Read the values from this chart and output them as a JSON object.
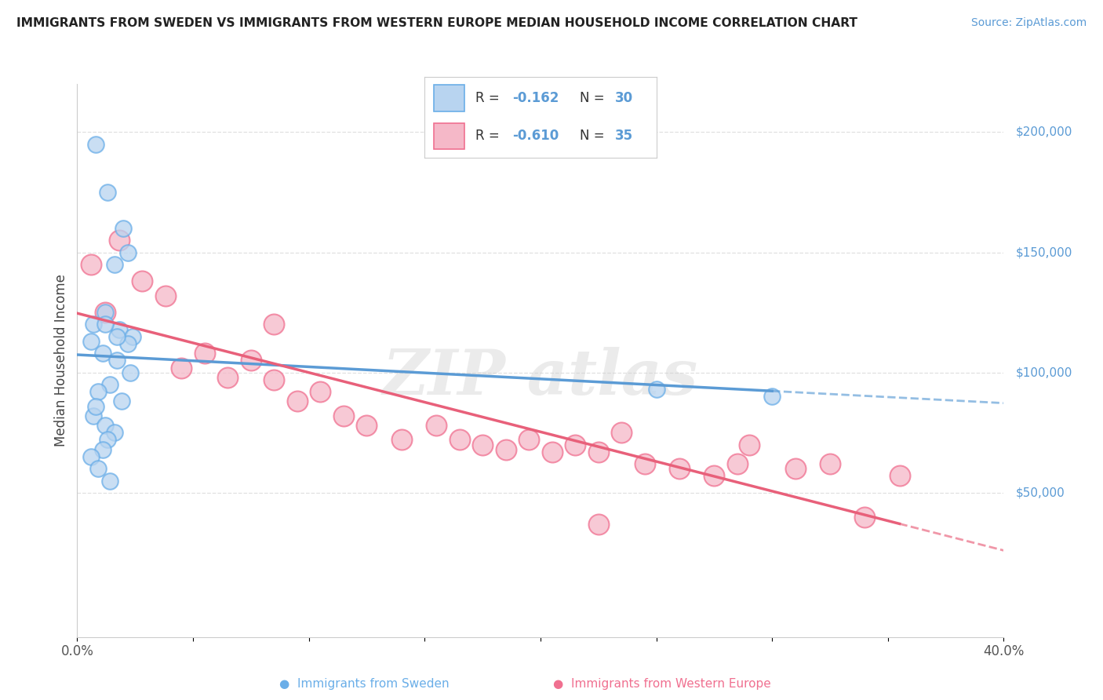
{
  "title": "IMMIGRANTS FROM SWEDEN VS IMMIGRANTS FROM WESTERN EUROPE MEDIAN HOUSEHOLD INCOME CORRELATION CHART",
  "source": "Source: ZipAtlas.com",
  "ylabel": "Median Household Income",
  "xlim": [
    0.0,
    0.4
  ],
  "ylim": [
    -10000,
    220000
  ],
  "xticks": [
    0.0,
    0.05,
    0.1,
    0.15,
    0.2,
    0.25,
    0.3,
    0.35,
    0.4
  ],
  "xticklabels": [
    "0.0%",
    "",
    "",
    "",
    "",
    "",
    "",
    "",
    "40.0%"
  ],
  "yticks_right": [
    50000,
    100000,
    150000,
    200000
  ],
  "ytick_labels_right": [
    "$50,000",
    "$100,000",
    "$150,000",
    "$200,000"
  ],
  "background_color": "#ffffff",
  "grid_color": "#e0e0e0",
  "sweden_fill_color": "#b8d4f0",
  "sweden_edge_color": "#6aaee8",
  "western_fill_color": "#f5b8c8",
  "western_edge_color": "#f07090",
  "sweden_line_color": "#5b9bd5",
  "western_line_color": "#e8607a",
  "legend_R1": "-0.162",
  "legend_N1": "30",
  "legend_R2": "-0.610",
  "legend_N2": "35",
  "sweden_x": [
    0.013,
    0.02,
    0.008,
    0.016,
    0.022,
    0.007,
    0.012,
    0.018,
    0.024,
    0.006,
    0.011,
    0.017,
    0.023,
    0.014,
    0.009,
    0.019,
    0.007,
    0.012,
    0.016,
    0.008,
    0.013,
    0.011,
    0.006,
    0.009,
    0.014,
    0.25,
    0.3,
    0.022,
    0.017,
    0.012
  ],
  "sweden_y": [
    175000,
    160000,
    195000,
    145000,
    150000,
    120000,
    125000,
    118000,
    115000,
    113000,
    108000,
    105000,
    100000,
    95000,
    92000,
    88000,
    82000,
    78000,
    75000,
    86000,
    72000,
    68000,
    65000,
    60000,
    55000,
    93000,
    90000,
    112000,
    115000,
    120000
  ],
  "western_x": [
    0.006,
    0.012,
    0.018,
    0.028,
    0.038,
    0.045,
    0.055,
    0.065,
    0.075,
    0.085,
    0.095,
    0.105,
    0.115,
    0.125,
    0.14,
    0.155,
    0.165,
    0.175,
    0.185,
    0.195,
    0.205,
    0.215,
    0.225,
    0.235,
    0.245,
    0.26,
    0.275,
    0.29,
    0.31,
    0.325,
    0.34,
    0.355,
    0.085,
    0.285,
    0.225
  ],
  "western_y": [
    145000,
    125000,
    155000,
    138000,
    132000,
    102000,
    108000,
    98000,
    105000,
    97000,
    88000,
    92000,
    82000,
    78000,
    72000,
    78000,
    72000,
    70000,
    68000,
    72000,
    67000,
    70000,
    67000,
    75000,
    62000,
    60000,
    57000,
    70000,
    60000,
    62000,
    40000,
    57000,
    120000,
    62000,
    37000
  ]
}
